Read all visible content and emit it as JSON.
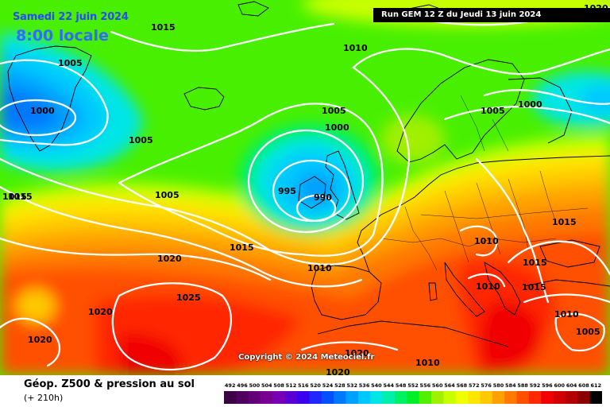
{
  "header": {
    "date": "Samedi 22 juin 2024",
    "time": "8:00 locale"
  },
  "run_label": "Run GEM 12 Z du Jeudi 13 juin 2024",
  "copyright": "Copyright © 2024 Meteociel.fr",
  "footer": {
    "title": "Géop. Z500 & pression au sol",
    "subtitle": "(+ 210h)"
  },
  "pressure_labels": [
    {
      "value": "1020"
    },
    {
      "value": "1015"
    },
    {
      "value": "1005"
    },
    {
      "value": "1000"
    },
    {
      "value": "1005"
    },
    {
      "value": "1015"
    },
    {
      "value": "1010"
    },
    {
      "value": "1005"
    },
    {
      "value": "1000"
    },
    {
      "value": "995"
    },
    {
      "value": "990"
    },
    {
      "value": "1005"
    },
    {
      "value": "1005"
    },
    {
      "value": "1000"
    },
    {
      "value": "1015"
    },
    {
      "value": "1010"
    },
    {
      "value": "1015"
    },
    {
      "value": "1010"
    },
    {
      "value": "1015"
    },
    {
      "value": "1015"
    },
    {
      "value": "1010"
    },
    {
      "value": "1005"
    },
    {
      "value": "1020"
    },
    {
      "value": "1025"
    },
    {
      "value": "1020"
    },
    {
      "value": "1020"
    },
    {
      "value": "1010"
    },
    {
      "value": "1020"
    },
    {
      "value": "1015"
    },
    {
      "value": "1010"
    },
    {
      "value": "1020"
    }
  ],
  "legend": {
    "values": [
      "492",
      "496",
      "500",
      "504",
      "508",
      "512",
      "516",
      "520",
      "524",
      "528",
      "532",
      "536",
      "540",
      "544",
      "548",
      "552",
      "556",
      "560",
      "564",
      "568",
      "572",
      "576",
      "580",
      "584",
      "588",
      "592",
      "596",
      "600",
      "604",
      "608",
      "612"
    ],
    "colors": [
      "#3c0046",
      "#50005f",
      "#640078",
      "#780090",
      "#7800b4",
      "#5a00d2",
      "#3c00f0",
      "#1e28ff",
      "#0050ff",
      "#0078ff",
      "#00a0ff",
      "#00c8ff",
      "#00e6e6",
      "#00f0aa",
      "#00f064",
      "#00f028",
      "#50f000",
      "#a0f000",
      "#c8ff00",
      "#f0ff00",
      "#ffe600",
      "#ffc800",
      "#ffa000",
      "#ff7800",
      "#ff5000",
      "#ff2800",
      "#f00000",
      "#d20000",
      "#b40000",
      "#8c0000",
      "#000000"
    ]
  }
}
